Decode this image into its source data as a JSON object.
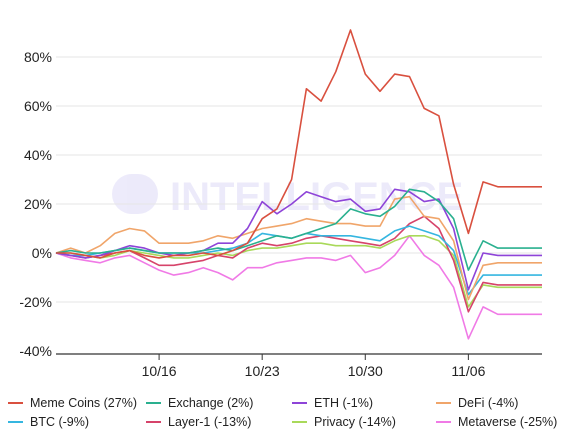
{
  "chart_data": {
    "type": "line",
    "title": "",
    "xlabel": "",
    "ylabel": "",
    "ylim": [
      -40,
      90
    ],
    "yticks": [
      -40,
      -20,
      0,
      20,
      40,
      60,
      80
    ],
    "ytick_labels": [
      "-40%",
      "-20%",
      "0%",
      "20%",
      "40%",
      "60%",
      "80%"
    ],
    "xticks": [
      {
        "label": "10/16",
        "x": 7
      },
      {
        "label": "10/23",
        "x": 14
      },
      {
        "label": "10/30",
        "x": 21
      },
      {
        "label": "11/06",
        "x": 28
      }
    ],
    "x": [
      0,
      1,
      2,
      3,
      4,
      5,
      6,
      7,
      8,
      9,
      10,
      11,
      12,
      13,
      14,
      15,
      16,
      17,
      18,
      19,
      20,
      21,
      22,
      23,
      24,
      25,
      26,
      27,
      28,
      29,
      30,
      31,
      32,
      33
    ],
    "grid": "horizontal",
    "legend_position": "bottom",
    "watermark": "INTELLIGENCE",
    "series": [
      {
        "name": "Meme Coins (27%)",
        "color": "#d9503f",
        "values": [
          0,
          0,
          -1,
          -2,
          0,
          1,
          -1,
          -2,
          -1,
          -1,
          0,
          -1,
          1,
          4,
          14,
          18,
          30,
          67,
          62,
          74,
          91,
          73,
          66,
          73,
          72,
          59,
          56,
          28,
          8,
          29,
          27,
          27,
          27,
          27
        ]
      },
      {
        "name": "Exchange (2%)",
        "color": "#2ab08f",
        "values": [
          0,
          1,
          0,
          0,
          1,
          2,
          1,
          0,
          0,
          0,
          1,
          2,
          1,
          3,
          5,
          7,
          6,
          8,
          10,
          12,
          18,
          16,
          15,
          19,
          26,
          25,
          21,
          14,
          -7,
          5,
          2,
          2,
          2,
          2
        ]
      },
      {
        "name": "ETH (-1%)",
        "color": "#8e44d8",
        "values": [
          0,
          -1,
          -2,
          -1,
          1,
          3,
          2,
          0,
          -1,
          0,
          1,
          4,
          4,
          10,
          21,
          16,
          20,
          25,
          23,
          21,
          22,
          17,
          18,
          26,
          25,
          21,
          22,
          10,
          -15,
          0,
          -1,
          -1,
          -1,
          -1
        ]
      },
      {
        "name": "DeFi (-4%)",
        "color": "#f0a56a",
        "values": [
          0,
          2,
          0,
          3,
          8,
          10,
          9,
          4,
          4,
          4,
          5,
          7,
          6,
          8,
          10,
          11,
          12,
          14,
          13,
          12,
          12,
          11,
          11,
          22,
          23,
          15,
          14,
          5,
          -19,
          -5,
          -4,
          -4,
          -4,
          -4
        ]
      },
      {
        "name": "BTC (-9%)",
        "color": "#35b6e0",
        "values": [
          0,
          -1,
          -1,
          0,
          1,
          2,
          1,
          0,
          0,
          0,
          0,
          1,
          2,
          4,
          8,
          7,
          6,
          8,
          7,
          7,
          7,
          6,
          5,
          9,
          11,
          9,
          7,
          1,
          -17,
          -9,
          -9,
          -9,
          -9,
          -9
        ]
      },
      {
        "name": "Layer-1 (-13%)",
        "color": "#d6436a",
        "values": [
          0,
          -1,
          -2,
          -1,
          0,
          1,
          -2,
          -5,
          -5,
          -4,
          -3,
          -1,
          -2,
          2,
          4,
          3,
          4,
          6,
          7,
          6,
          5,
          4,
          3,
          6,
          12,
          15,
          10,
          -3,
          -24,
          -12,
          -13,
          -13,
          -13,
          -13
        ]
      },
      {
        "name": "Privacy (-14%)",
        "color": "#a9d95a",
        "values": [
          0,
          0,
          -1,
          -2,
          -1,
          1,
          0,
          -1,
          -2,
          -2,
          -1,
          0,
          -1,
          1,
          2,
          2,
          3,
          4,
          4,
          3,
          3,
          3,
          2,
          5,
          7,
          7,
          5,
          -1,
          -22,
          -13,
          -14,
          -14,
          -14,
          -14
        ]
      },
      {
        "name": "Metaverse (-25%)",
        "color": "#f07ae6",
        "values": [
          0,
          -2,
          -3,
          -4,
          -2,
          -1,
          -4,
          -7,
          -9,
          -8,
          -6,
          -8,
          -11,
          -6,
          -6,
          -4,
          -3,
          -2,
          -2,
          -3,
          -1,
          -8,
          -6,
          -1,
          7,
          -1,
          -5,
          -14,
          -35,
          -22,
          -25,
          -25,
          -25,
          -25
        ]
      }
    ]
  },
  "legend_rows": [
    [
      "Meme Coins (27%)",
      "Exchange (2%)",
      "ETH (-1%)",
      "DeFi (-4%)"
    ],
    [
      "BTC (-9%)",
      "Layer-1 (-13%)",
      "Privacy (-14%)",
      "Metaverse (-25%)"
    ]
  ]
}
